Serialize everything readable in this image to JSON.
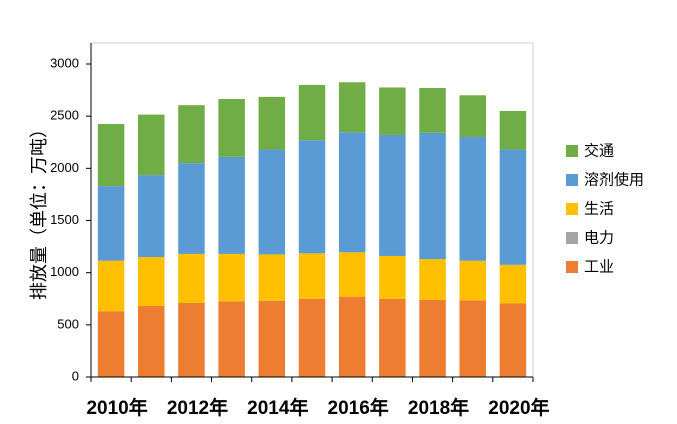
{
  "chart_data": {
    "type": "bar",
    "stacked": true,
    "title": "",
    "xlabel": "",
    "ylabel": "排放量（单位：万吨）",
    "ylim": [
      0,
      3000
    ],
    "yticks": [
      0,
      500,
      1000,
      1500,
      2000,
      2500,
      3000
    ],
    "grid": false,
    "legend_position": "right",
    "categories": [
      "2010",
      "2011",
      "2012",
      "2013",
      "2014",
      "2015",
      "2016",
      "2017",
      "2018",
      "2019",
      "2020"
    ],
    "x_tick_labels": [
      "2010年",
      "2012年",
      "2014年",
      "2016年",
      "2018年",
      "2020年"
    ],
    "series": [
      {
        "name": "工业",
        "color": "#ED7D31",
        "values": [
          630,
          680,
          710,
          725,
          730,
          750,
          770,
          750,
          740,
          735,
          705
        ]
      },
      {
        "name": "电力",
        "color": "#A5A5A5",
        "values": [
          0,
          0,
          0,
          0,
          0,
          0,
          0,
          0,
          0,
          0,
          0
        ]
      },
      {
        "name": "生活",
        "color": "#FFC000",
        "values": [
          485,
          470,
          470,
          455,
          445,
          435,
          425,
          410,
          390,
          380,
          370
        ]
      },
      {
        "name": "溶剂使用",
        "color": "#5B9BD5",
        "values": [
          715,
          785,
          870,
          930,
          1005,
          1085,
          1150,
          1160,
          1210,
          1185,
          1105
        ]
      },
      {
        "name": "交通",
        "color": "#70AD47",
        "values": [
          595,
          580,
          555,
          555,
          505,
          530,
          480,
          455,
          430,
          400,
          370
        ]
      }
    ],
    "legend_order": [
      "交通",
      "溶剂使用",
      "生活",
      "电力",
      "工业"
    ]
  }
}
